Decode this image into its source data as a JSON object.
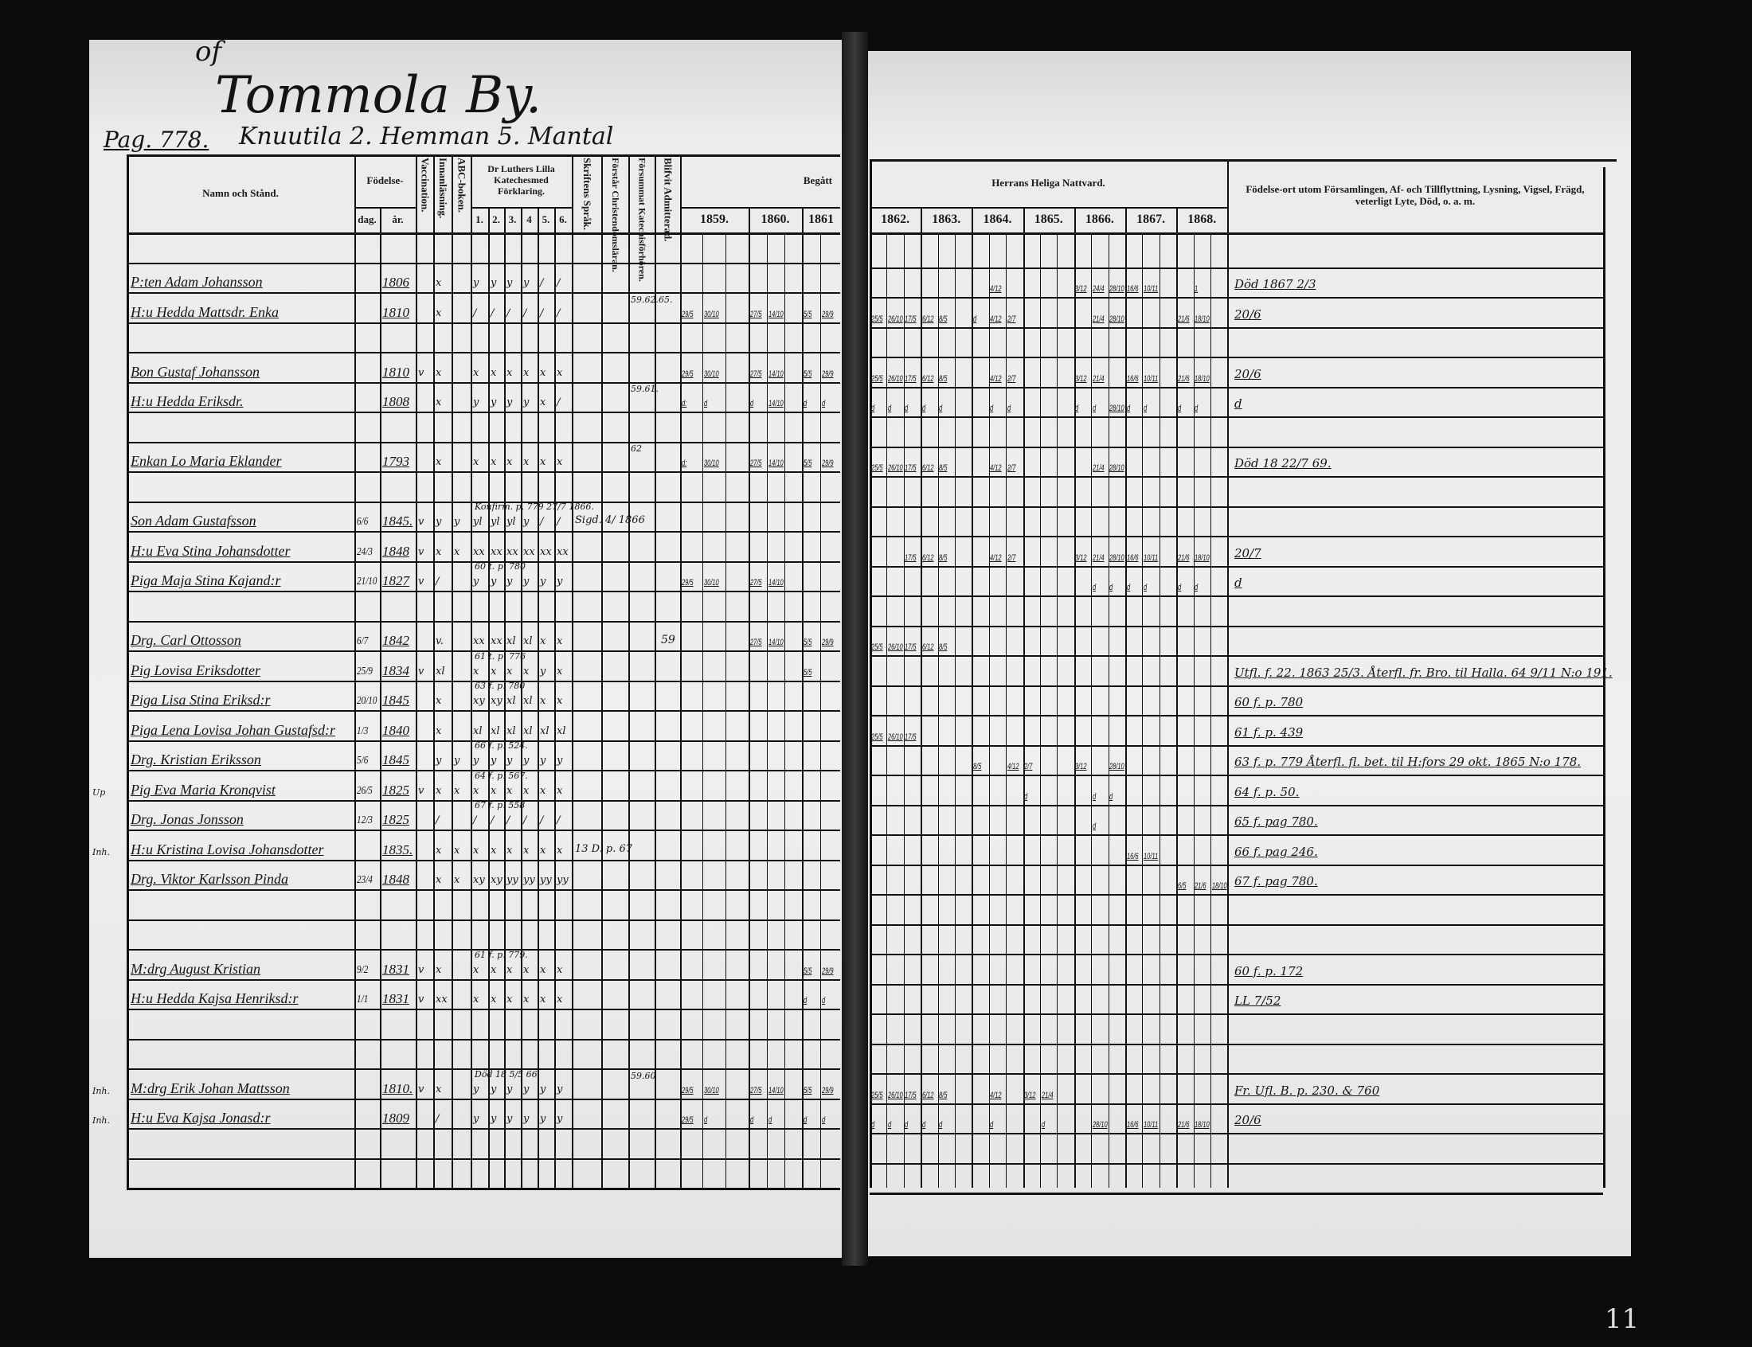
{
  "header": {
    "prefix": "of",
    "village": "Tommola By.",
    "estate": "Knuutila 2. Hemman 5. Mantal",
    "page_ref": "Pag. 778."
  },
  "columns": {
    "name": "Namn och Stånd.",
    "birth": "Födelse-",
    "birth_day": "dag.",
    "birth_year": "år.",
    "vaccination": "Vaccination.",
    "reading": "Innanläsning.",
    "abc": "ABC-boken.",
    "luther": "Dr Luthers Lilla Katechesmed Förklaring.",
    "luther_parts": [
      "1.",
      "2.",
      "3.",
      "4",
      "5.",
      "6."
    ],
    "scripture_language": "Skriftens Språk.",
    "understands": "Förstår Christendomsläran.",
    "missed": "Försummat Katechisförhören.",
    "admitted": "Blifvit Admitterad.",
    "attended": "Begått",
    "communion": "Herrans Heliga Nattvard.",
    "years_left": [
      "1859.",
      "1860.",
      "1861"
    ],
    "years_right": [
      "1862.",
      "1863.",
      "1864.",
      "1865.",
      "1866.",
      "1867.",
      "1868."
    ],
    "remarks": "Födelse-ort utom Församlingen, Af- och Tillflyttning, Lysning, Vigsel, Frägd, veterligt Lyte, Död, o. a. m."
  },
  "rows": [
    {},
    {
      "name": "P:ten Adam Johansson",
      "year": "1806",
      "marks": [
        "",
        "x",
        "",
        "y",
        "y",
        "y",
        "y",
        "/",
        "/"
      ],
      "communion": {
        "1864": [
          "",
          "4/12"
        ],
        "1866": [
          "3/12",
          "24/4",
          "28/10"
        ],
        "1867": [
          "16/6",
          "10/11"
        ],
        "1868": [
          "",
          "1"
        ]
      },
      "remarks": "Död 1867 2/3"
    },
    {
      "name": "H:u Hedda Mattsdr. Enka",
      "year": "1810",
      "marks": [
        "",
        "x",
        "",
        "/",
        "/",
        "/",
        "/",
        "/",
        "/"
      ],
      "missed": "59.62.65.",
      "communion": {
        "1859": [
          "29/5",
          "30/10"
        ],
        "1860": [
          "27/5",
          "14/10"
        ],
        "1861": [
          "5/5",
          "29/9"
        ],
        "1862": [
          "25/5",
          "26/10",
          "17/5"
        ],
        "1863": [
          "6/12",
          "8/5"
        ],
        "1864": [
          "d",
          "4/12",
          "2/7"
        ],
        "1866": [
          "",
          "21/4",
          "28/10"
        ],
        "1868": [
          "21/6",
          "18/10"
        ]
      },
      "remarks": "20/6"
    },
    {},
    {
      "name": "Bon Gustaf Johansson",
      "year": "1810",
      "marks": [
        "v",
        "x",
        "",
        "x",
        "x",
        "x",
        "x",
        "x",
        "x"
      ],
      "communion": {
        "1859": [
          "29/5",
          "30/10"
        ],
        "1860": [
          "27/5",
          "14/10"
        ],
        "1861": [
          "5/5",
          "29/9"
        ],
        "1862": [
          "25/5",
          "26/10",
          "17/5"
        ],
        "1863": [
          "6/12",
          "8/5"
        ],
        "1864": [
          "",
          "4/12",
          "2/7"
        ],
        "1866": [
          "3/12",
          "21/4"
        ],
        "1867": [
          "16/6",
          "10/11"
        ],
        "1868": [
          "21/6",
          "18/10"
        ]
      },
      "remarks": "20/6"
    },
    {
      "name": "H:u Hedda Eriksdr.",
      "year": "1808",
      "marks": [
        "",
        "x",
        "",
        "y",
        "y",
        "y",
        "y",
        "x",
        "/"
      ],
      "missed": "59.61.",
      "communion": {
        "1859": [
          "d:",
          "d"
        ],
        "1860": [
          "d",
          "14/10"
        ],
        "1861": [
          "d",
          "d"
        ],
        "1862": [
          "d",
          "d",
          "d"
        ],
        "1863": [
          "d",
          "d"
        ],
        "1864": [
          "",
          "d",
          "d"
        ],
        "1866": [
          "d",
          "d",
          "28/10"
        ],
        "1867": [
          "d",
          "d"
        ],
        "1868": [
          "d",
          "d"
        ]
      },
      "remarks": "d"
    },
    {},
    {
      "name": "Enkan Lo Maria Eklander",
      "year": "1793",
      "marks": [
        "",
        "x",
        "",
        "x",
        "x",
        "x",
        "x",
        "x",
        "x"
      ],
      "missed": "62",
      "communion": {
        "1859": [
          "d:",
          "30/10"
        ],
        "1860": [
          "27/5",
          "14/10"
        ],
        "1861": [
          "5/5",
          "29/9"
        ],
        "1862": [
          "25/5",
          "26/10",
          "17/5"
        ],
        "1863": [
          "6/12",
          "8/5"
        ],
        "1864": [
          "",
          "4/12",
          "2/7"
        ],
        "1866": [
          "",
          "21/4",
          "28/10"
        ]
      },
      "remarks": "Död 18 22/7 69."
    },
    {},
    {
      "name": "Son Adam Gustafsson",
      "day": "6/6",
      "year": "1845.",
      "marks": [
        "v",
        "y",
        "y",
        "yl",
        "yl",
        "yl",
        "y",
        "/",
        "/"
      ],
      "note": "Konfirm. p. 779 27/7 1866.",
      "scripture": "Sigd. 4/ 1866"
    },
    {
      "name": "H:u Eva Stina Johansdotter",
      "day": "24/3",
      "year": "1848",
      "marks": [
        "v",
        "x",
        "x",
        "xx",
        "xx",
        "xx",
        "xx",
        "xx",
        "xx"
      ],
      "communion": {
        "1862": [
          "",
          "",
          "17/5"
        ],
        "1863": [
          "6/12",
          "8/5"
        ],
        "1864": [
          "",
          "4/12",
          "2/7"
        ],
        "1866": [
          "3/12",
          "21/4",
          "28/10"
        ],
        "1867": [
          "16/6",
          "10/11"
        ],
        "1868": [
          "21/6",
          "18/10"
        ]
      },
      "remarks": "20/7"
    },
    {
      "name": "Piga Maja Stina Kajand:r",
      "day": "21/10",
      "year": "1827",
      "marks": [
        "v",
        "/",
        "",
        "y",
        "y",
        "y",
        "y",
        "y",
        "y"
      ],
      "note": "60 t. p. 780",
      "communion": {
        "1859": [
          "29/5",
          "30/10"
        ],
        "1860": [
          "27/5",
          "14/10"
        ],
        "1866": [
          "",
          "d",
          "d"
        ],
        "1867": [
          "d",
          "d"
        ],
        "1868": [
          "d",
          "d"
        ]
      },
      "remarks": "d"
    },
    {},
    {
      "name": "Drg. Carl Ottosson",
      "day": "6/7",
      "year": "1842",
      "marks": [
        "",
        "v.",
        "",
        "xx",
        "xx",
        "xl",
        "xl",
        "x",
        "x"
      ],
      "admitted": "59",
      "communion": {
        "1860": [
          "27/5",
          "14/10"
        ],
        "1861": [
          "5/5",
          "29/9"
        ],
        "1862": [
          "25/5",
          "26/10",
          "17/5"
        ],
        "1863": [
          "6/12",
          "8/5"
        ]
      }
    },
    {
      "name": "Pig Lovisa Eriksdotter",
      "day": "25/9",
      "year": "1834",
      "marks": [
        "v",
        "xl",
        "",
        "x",
        "x",
        "x",
        "x",
        "y",
        "x"
      ],
      "note": "61 t. p. 776",
      "communion": {
        "1861": [
          "5/5",
          ""
        ]
      },
      "remarks": "Utfl. f. 22. 1863 25/3. Återfl. fr. Bro. til Halla. 64 9/11 N:o 191."
    },
    {
      "name": "Piga Lisa Stina Eriksd:r",
      "day": "20/10",
      "year": "1845",
      "marks": [
        "",
        "x",
        "",
        "xy",
        "xy",
        "xl",
        "xl",
        "x",
        "x"
      ],
      "note": "63 f. p. 780",
      "remarks": "60 f. p. 780"
    },
    {
      "name": "Piga Lena Lovisa Johan Gustafsd:r",
      "day": "1/3",
      "year": "1840",
      "marks": [
        "",
        "x",
        "",
        "xl",
        "xl",
        "xl",
        "xl",
        "xl",
        "xl"
      ],
      "communion": {
        "1862": [
          "25/5",
          "26/10",
          "17/5"
        ]
      },
      "remarks": "61 f. p. 439"
    },
    {
      "name": "Drg. Kristian Eriksson",
      "day": "5/6",
      "year": "1845",
      "marks": [
        "",
        "y",
        "y",
        "y",
        "y",
        "y",
        "y",
        "y",
        "y"
      ],
      "note": "66 f. p. 524.",
      "communion": {
        "1864": [
          "8/5",
          "",
          "4/12"
        ],
        "1865": [
          "2/7"
        ],
        "1866": [
          "3/12",
          "",
          "28/10"
        ]
      },
      "remarks": "63 f. p. 779 Återfl. fl. bet. til H:fors 29 okt. 1865 N:o 178."
    },
    {
      "name": "Pig Eva Maria Kronqvist",
      "margin": "Up",
      "day": "26/5",
      "year": "1825",
      "marks": [
        "v",
        "x",
        "x",
        "x",
        "x",
        "x",
        "x",
        "x",
        "x"
      ],
      "note": "64 f. p. 567.",
      "communion": {
        "1865": [
          "d"
        ],
        "1866": [
          "",
          "d",
          "d"
        ]
      },
      "remarks": "64 f. p. 50."
    },
    {
      "name": "Drg. Jonas Jonsson",
      "day": "12/3",
      "year": "1825",
      "marks": [
        "",
        "/",
        "",
        "/",
        "/",
        "/",
        "/",
        "/",
        "/"
      ],
      "note": "67 f. p. 558",
      "communion": {
        "1866": [
          "",
          "d"
        ]
      },
      "remarks": "65 f. pag 780."
    },
    {
      "name": "H:u Kristina Lovisa Johansdotter",
      "margin": "Inh.",
      "year": "1835.",
      "marks": [
        "",
        "x",
        "x",
        "x",
        "x",
        "x",
        "x",
        "x",
        "x"
      ],
      "scripture": "13 D. p. 67",
      "communion": {
        "1867": [
          "16/6",
          "10/11"
        ]
      },
      "remarks": "66 f. pag 246."
    },
    {
      "name": "Drg. Viktor Karlsson Pinda",
      "day": "23/4",
      "year": "1848",
      "marks": [
        "",
        "x",
        "x",
        "xy",
        "xy",
        "yy",
        "yy",
        "yy",
        "yy"
      ],
      "communion": {
        "1868": [
          "6/5",
          "21/6",
          "18/10"
        ]
      },
      "remarks": "67 f. pag 780."
    },
    {},
    {},
    {
      "name": "M:drg August Kristian",
      "day": "9/2",
      "year": "1831",
      "marks": [
        "v",
        "x",
        "",
        "x",
        "x",
        "x",
        "x",
        "x",
        "x"
      ],
      "note": "61 f. p. 779.",
      "communion": {
        "1861": [
          "5/5",
          "29/9"
        ]
      },
      "remarks": "60 f. p. 172"
    },
    {
      "name": "H:u Hedda Kajsa Henriksd:r",
      "day": "1/1",
      "year": "1831",
      "marks": [
        "v",
        "xx",
        "",
        "x",
        "x",
        "x",
        "x",
        "x",
        "x"
      ],
      "communion": {
        "1861": [
          "d",
          "d"
        ]
      },
      "remarks": "LL 7/52"
    },
    {},
    {},
    {
      "name": "M:drg Erik Johan Mattsson",
      "margin": "Inh.",
      "year": "1810.",
      "marks": [
        "v",
        "x",
        "",
        "y",
        "y",
        "y",
        "y",
        "y",
        "y"
      ],
      "note": "Död 18 5/5 66",
      "missed": "59.60",
      "communion": {
        "1859": [
          "29/5",
          "30/10"
        ],
        "1860": [
          "27/5",
          "14/10"
        ],
        "1861": [
          "5/5",
          "29/9"
        ],
        "1862": [
          "25/5",
          "26/10",
          "17/5"
        ],
        "1863": [
          "6/12",
          "8/5"
        ],
        "1864": [
          "",
          "4/12"
        ],
        "1865": [
          "3/12",
          "21/4"
        ]
      },
      "remarks": "Fr. Ufl. B. p. 230. & 760"
    },
    {
      "name": "H:u Eva Kajsa Jonasd:r",
      "margin": "Inh.",
      "year": "1809",
      "marks": [
        "",
        "/",
        "",
        "y",
        "y",
        "y",
        "y",
        "y",
        "y"
      ],
      "communion": {
        "1859": [
          "29/5",
          "d"
        ],
        "1860": [
          "d",
          "d"
        ],
        "1861": [
          "d",
          "d"
        ],
        "1862": [
          "d",
          "d",
          "d"
        ],
        "1863": [
          "d",
          "d"
        ],
        "1864": [
          "",
          "d"
        ],
        "1865": [
          "",
          "d"
        ],
        "1866": [
          "",
          "28/10"
        ],
        "1867": [
          "16/6",
          "10/11"
        ],
        "1868": [
          "21/6",
          "18/10"
        ]
      },
      "remarks": "20/6"
    },
    {},
    {}
  ],
  "stamp": "11"
}
